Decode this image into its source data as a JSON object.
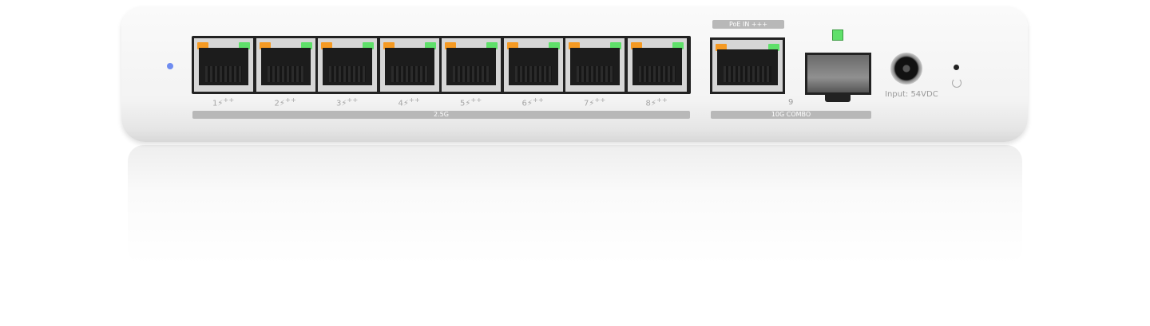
{
  "device": {
    "ports": [
      {
        "number": "1",
        "poe": "++"
      },
      {
        "number": "2",
        "poe": "++"
      },
      {
        "number": "3",
        "poe": "++"
      },
      {
        "number": "4",
        "poe": "++"
      },
      {
        "number": "5",
        "poe": "++"
      },
      {
        "number": "6",
        "poe": "++"
      },
      {
        "number": "7",
        "poe": "++"
      },
      {
        "number": "8",
        "poe": "++"
      }
    ],
    "group_label_25g": "2.5G",
    "poe_in_label": "PoE IN",
    "poe_in_suffix": "+++",
    "port9_number": "9",
    "combo_label": "10G COMBO",
    "power_label": "Input: 54VDC",
    "colors": {
      "led_orange": "#f59a23",
      "led_green": "#5fe06a",
      "status_led_blue": "#6f8cf0"
    }
  }
}
